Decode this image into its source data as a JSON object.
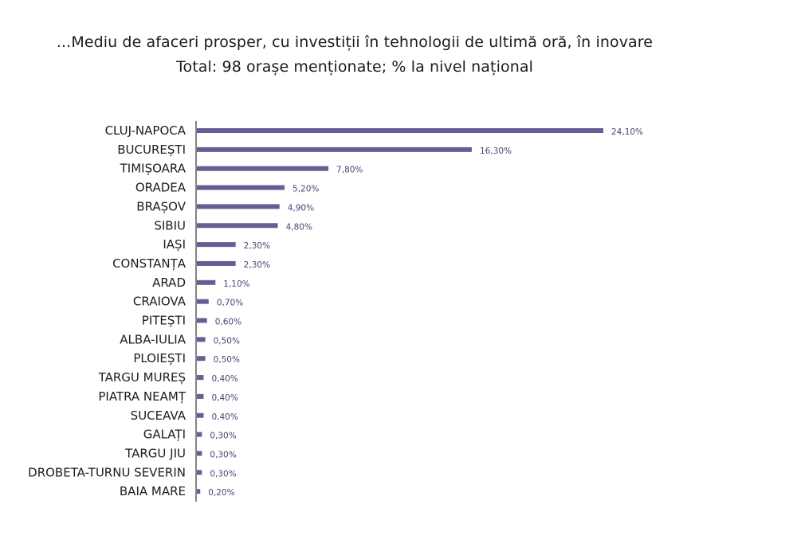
{
  "title": "...Mediu de afaceri prosper, cu investiții în tehnologii de ultimă oră, în inovare",
  "subtitle": "Total: 98 orașe menționate; % la nivel național",
  "colors": {
    "bar": "#6b5b95",
    "axis": "#333333"
  },
  "chart_data": {
    "type": "bar",
    "orientation": "horizontal",
    "categories": [
      "CLUJ-NAPOCA",
      "BUCUREȘTI",
      "TIMIȘOARA",
      "ORADEA",
      "BRAȘOV",
      "SIBIU",
      "IAȘI",
      "CONSTANȚA",
      "ARAD",
      "CRAIOVA",
      "PITEȘTI",
      "ALBA-IULIA",
      "PLOIEȘTI",
      "TARGU MUREȘ",
      "PIATRA NEAMȚ",
      "SUCEAVA",
      "GALAȚI",
      "TARGU JIU",
      "DROBETA-TURNU SEVERIN",
      "BAIA MARE"
    ],
    "values": [
      24.1,
      16.3,
      7.8,
      5.2,
      4.9,
      4.8,
      2.3,
      2.3,
      1.1,
      0.7,
      0.6,
      0.5,
      0.5,
      0.4,
      0.4,
      0.4,
      0.3,
      0.3,
      0.3,
      0.2
    ],
    "value_labels": [
      "24,10%",
      "16,30%",
      "7,80%",
      "5,20%",
      "4,90%",
      "4,80%",
      "2,30%",
      "2,30%",
      "1,10%",
      "0,70%",
      "0,60%",
      "0,50%",
      "0,50%",
      "0,40%",
      "0,40%",
      "0,40%",
      "0,30%",
      "0,30%",
      "0,30%",
      "0,20%"
    ],
    "xlim": [
      0,
      24.1
    ],
    "grid": false,
    "legend": "none"
  }
}
